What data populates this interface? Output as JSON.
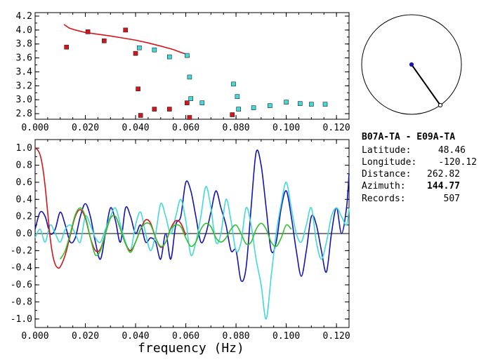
{
  "station_info": {
    "pair": "B07A-TA  - E09A-TA",
    "rows": [
      {
        "label": "Latitude:",
        "value": "48.46"
      },
      {
        "label": "Longitude:",
        "value": "-120.12"
      },
      {
        "label": "Distance:",
        "value": "262.82"
      },
      {
        "label": "Azimuth:",
        "value": "144.77"
      },
      {
        "label": "Records:",
        "value": "507"
      }
    ]
  },
  "compass": {
    "azimuth_deg": 144.77
  },
  "colors": {
    "red": "#d4161c",
    "cyan": "#40dada",
    "blue": "#1414b4",
    "green": "#30c030",
    "axis": "#000000"
  },
  "chart_data": [
    {
      "type": "scatter",
      "xlabel": "",
      "ylabel": "",
      "xlim": [
        0.0,
        0.125
      ],
      "ylim": [
        2.72,
        4.25
      ],
      "xticks": [
        "0.000",
        "0.020",
        "0.040",
        "0.060",
        "0.080",
        "0.100",
        "0.120"
      ],
      "yticks": [
        "2.8",
        "3.0",
        "3.2",
        "3.4",
        "3.6",
        "3.8",
        "4.0",
        "4.2"
      ],
      "curve": {
        "color": "red",
        "x": [
          0.0115,
          0.0135,
          0.016,
          0.02,
          0.025,
          0.03,
          0.035,
          0.04,
          0.045,
          0.05,
          0.055,
          0.058,
          0.06,
          0.0615
        ],
        "y": [
          4.08,
          4.03,
          4.0,
          3.965,
          3.94,
          3.915,
          3.885,
          3.855,
          3.815,
          3.77,
          3.72,
          3.68,
          3.655,
          3.61
        ]
      },
      "series": [
        {
          "color": "red",
          "x": [
            0.0125,
            0.021,
            0.0275,
            0.036,
            0.04,
            0.041,
            0.042,
            0.0475,
            0.0535,
            0.0605,
            0.0615,
            0.0785
          ],
          "y": [
            3.755,
            3.975,
            3.845,
            4.0,
            3.665,
            3.155,
            2.775,
            2.865,
            2.865,
            2.955,
            2.745,
            2.785
          ]
        },
        {
          "color": "cyan",
          "x": [
            0.0415,
            0.0475,
            0.0535,
            0.0605,
            0.0615,
            0.062,
            0.0665,
            0.079,
            0.0805,
            0.081,
            0.087,
            0.0935,
            0.1,
            0.1055,
            0.11,
            0.1155
          ],
          "y": [
            3.745,
            3.715,
            3.615,
            3.635,
            3.325,
            3.015,
            2.955,
            3.225,
            3.045,
            2.865,
            2.885,
            2.915,
            2.965,
            2.945,
            2.935,
            2.935
          ]
        }
      ]
    },
    {
      "type": "line",
      "xlabel": "frequency (Hz)",
      "ylabel": "",
      "xlim": [
        0.0,
        0.125
      ],
      "ylim": [
        -1.1,
        1.1
      ],
      "xticks": [
        "0.000",
        "0.020",
        "0.040",
        "0.060",
        "0.080",
        "0.100",
        "0.120"
      ],
      "yticks": [
        "-1.0",
        "-0.8",
        "-0.6",
        "-0.4",
        "-0.2",
        "0.0",
        "0.2",
        "0.4",
        "0.6",
        "0.8",
        "1.0"
      ],
      "series": [
        {
          "color": "blue",
          "x": [
            0.0,
            0.002,
            0.004,
            0.006,
            0.008,
            0.01,
            0.012,
            0.014,
            0.016,
            0.018,
            0.02,
            0.022,
            0.024,
            0.026,
            0.028,
            0.03,
            0.032,
            0.034,
            0.036,
            0.038,
            0.04,
            0.042,
            0.044,
            0.046,
            0.048,
            0.05,
            0.052,
            0.054,
            0.056,
            0.058,
            0.06,
            0.062,
            0.064,
            0.066,
            0.068,
            0.07,
            0.072,
            0.074,
            0.076,
            0.078,
            0.08,
            0.082,
            0.084,
            0.086,
            0.088,
            0.09,
            0.092,
            0.094,
            0.096,
            0.098,
            0.1,
            0.102,
            0.104,
            0.106,
            0.108,
            0.11,
            0.112,
            0.114,
            0.116,
            0.118,
            0.12,
            0.122,
            0.124,
            0.125
          ],
          "y": [
            0.05,
            0.25,
            0.2,
            0.0,
            0.05,
            0.25,
            0.1,
            -0.1,
            -0.05,
            0.2,
            0.35,
            0.2,
            -0.1,
            -0.3,
            0.0,
            0.3,
            0.15,
            -0.1,
            0.3,
            0.2,
            0.0,
            0.1,
            -0.1,
            -0.05,
            -0.1,
            -0.3,
            0.0,
            -0.3,
            0.1,
            0.2,
            0.6,
            0.5,
            0.2,
            -0.1,
            0.0,
            0.25,
            0.5,
            0.3,
            0.1,
            -0.2,
            -0.2,
            -0.55,
            -0.4,
            0.3,
            0.95,
            0.8,
            0.3,
            -0.2,
            -0.1,
            0.3,
            0.5,
            0.2,
            -0.2,
            -0.5,
            -0.2,
            0.2,
            0.1,
            -0.2,
            -0.45,
            0.0,
            0.3,
            0.0,
            0.3,
            0.7
          ]
        },
        {
          "color": "cyan",
          "x": [
            0.0,
            0.002,
            0.004,
            0.006,
            0.008,
            0.01,
            0.012,
            0.014,
            0.016,
            0.018,
            0.02,
            0.022,
            0.024,
            0.026,
            0.028,
            0.03,
            0.032,
            0.034,
            0.036,
            0.038,
            0.04,
            0.042,
            0.044,
            0.046,
            0.048,
            0.05,
            0.052,
            0.054,
            0.056,
            0.058,
            0.06,
            0.062,
            0.064,
            0.066,
            0.068,
            0.07,
            0.072,
            0.074,
            0.076,
            0.078,
            0.08,
            0.082,
            0.084,
            0.086,
            0.088,
            0.09,
            0.092,
            0.094,
            0.096,
            0.098,
            0.1,
            0.102,
            0.104,
            0.106,
            0.108,
            0.11,
            0.112,
            0.114,
            0.116,
            0.118,
            0.12,
            0.122,
            0.124,
            0.125
          ],
          "y": [
            -0.05,
            0.05,
            -0.1,
            0.1,
            0.0,
            -0.1,
            0.05,
            0.1,
            0.0,
            -0.1,
            0.2,
            0.1,
            -0.05,
            -0.1,
            0.05,
            0.2,
            0.3,
            0.1,
            -0.1,
            -0.2,
            0.1,
            0.25,
            0.0,
            -0.2,
            0.0,
            0.35,
            0.2,
            0.0,
            0.2,
            0.4,
            0.15,
            -0.25,
            -0.1,
            0.2,
            0.55,
            0.3,
            -0.1,
            0.0,
            0.4,
            0.15,
            -0.2,
            -0.1,
            0.3,
            0.1,
            -0.3,
            -0.6,
            -1.0,
            -0.5,
            0.0,
            0.35,
            0.6,
            0.3,
            0.0,
            -0.1,
            0.1,
            0.3,
            -0.1,
            -0.3,
            -0.1,
            0.2,
            0.3,
            0.2,
            0.1,
            0.3
          ]
        },
        {
          "color": "red",
          "x": [
            0.0,
            0.001,
            0.002,
            0.003,
            0.004,
            0.005,
            0.006,
            0.007,
            0.008,
            0.009,
            0.01,
            0.012,
            0.014,
            0.016,
            0.018,
            0.02,
            0.022,
            0.024,
            0.026,
            0.028,
            0.03,
            0.032,
            0.034,
            0.036,
            0.038,
            0.04,
            0.042,
            0.044,
            0.046,
            0.048,
            0.05,
            0.052,
            0.054,
            0.056,
            0.058,
            0.06
          ],
          "y": [
            1.0,
            0.98,
            0.92,
            0.78,
            0.55,
            0.25,
            -0.05,
            -0.25,
            -0.36,
            -0.4,
            -0.39,
            -0.25,
            -0.02,
            0.2,
            0.28,
            0.18,
            -0.05,
            -0.2,
            -0.18,
            0.0,
            0.18,
            0.2,
            0.05,
            -0.12,
            -0.2,
            -0.1,
            0.05,
            0.16,
            0.12,
            -0.05,
            -0.16,
            -0.1,
            0.06,
            0.15,
            0.12,
            -0.02
          ]
        },
        {
          "color": "green",
          "x": [
            0.01,
            0.012,
            0.014,
            0.016,
            0.018,
            0.02,
            0.022,
            0.024,
            0.026,
            0.028,
            0.03,
            0.032,
            0.034,
            0.036,
            0.038,
            0.04,
            0.042,
            0.044,
            0.046,
            0.048,
            0.05,
            0.052,
            0.054,
            0.056,
            0.058,
            0.06,
            0.062,
            0.064,
            0.066,
            0.068,
            0.07,
            0.072,
            0.074,
            0.076,
            0.078,
            0.08,
            0.082,
            0.084,
            0.086,
            0.088,
            0.09,
            0.092,
            0.094,
            0.096,
            0.098,
            0.1,
            0.102
          ],
          "y": [
            -0.3,
            -0.2,
            0.0,
            0.22,
            0.3,
            0.2,
            -0.05,
            -0.25,
            -0.2,
            0.0,
            0.18,
            0.2,
            0.05,
            -0.12,
            -0.22,
            -0.1,
            0.05,
            0.12,
            0.1,
            -0.05,
            -0.15,
            -0.1,
            0.05,
            0.1,
            0.08,
            -0.05,
            -0.15,
            -0.1,
            0.05,
            0.12,
            0.08,
            -0.05,
            -0.1,
            -0.05,
            0.05,
            0.1,
            0.0,
            -0.12,
            -0.1,
            0.05,
            0.12,
            0.05,
            -0.1,
            -0.15,
            -0.05,
            0.1,
            0.05
          ]
        }
      ]
    }
  ]
}
